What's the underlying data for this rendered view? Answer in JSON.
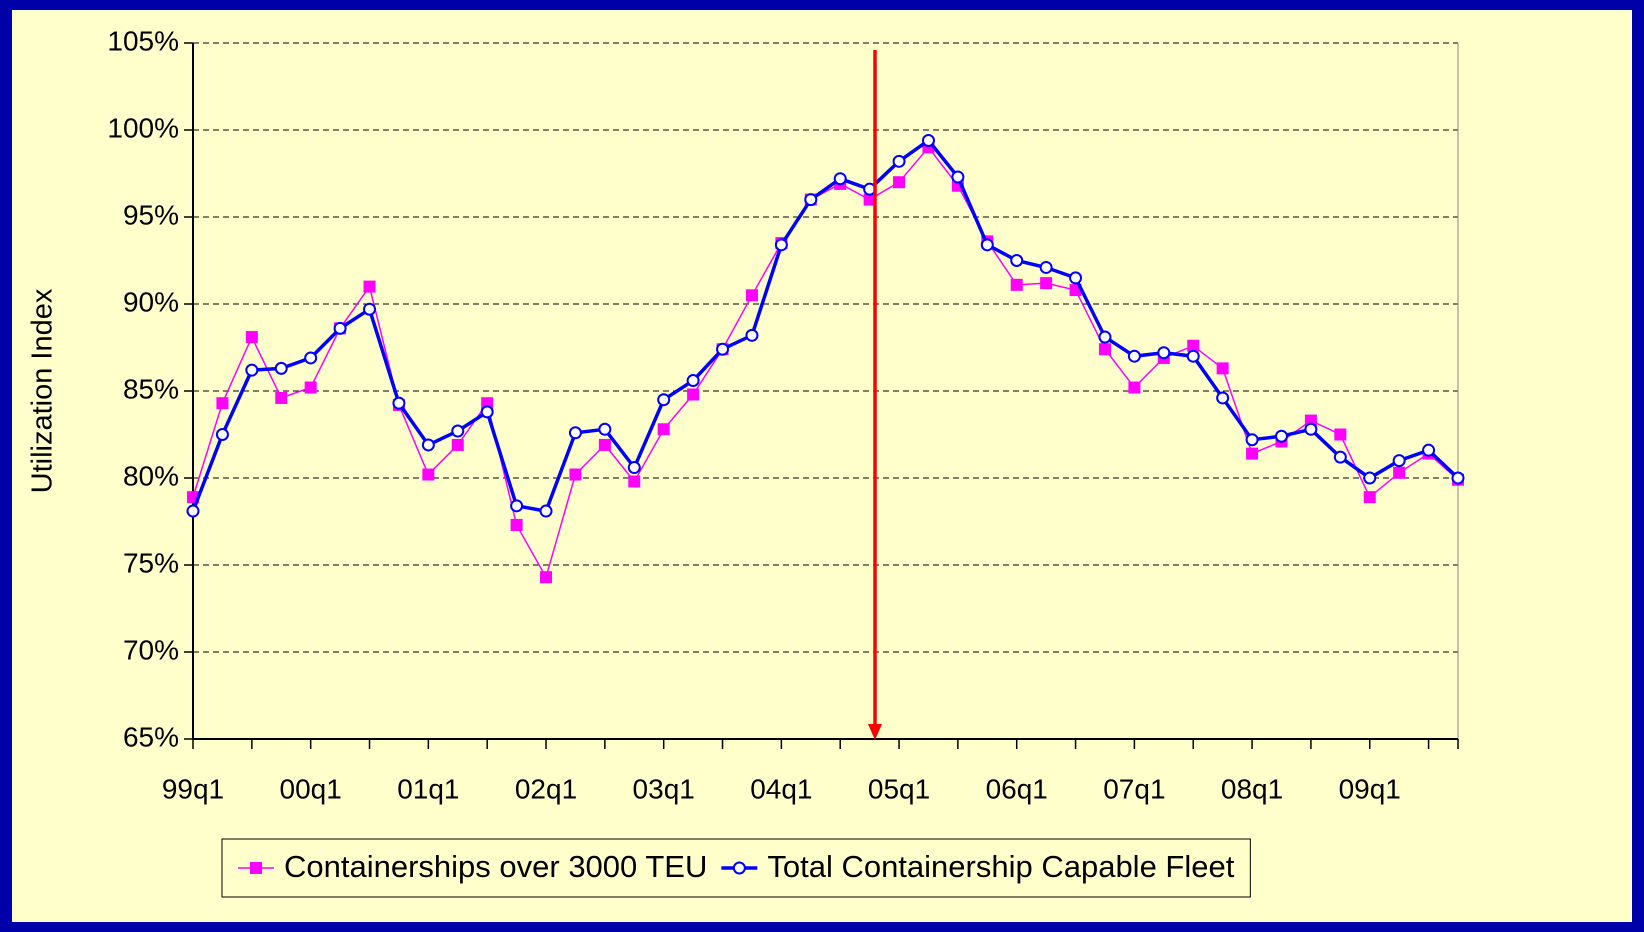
{
  "chart_data": {
    "type": "line",
    "ylabel": "Utilization Index",
    "categories": [
      "99q1",
      null,
      null,
      null,
      "00q1",
      null,
      null,
      null,
      "01q1",
      null,
      null,
      null,
      "02q1",
      null,
      null,
      null,
      "03q1",
      null,
      null,
      null,
      "04q1",
      null,
      null,
      null,
      "05q1",
      null,
      null,
      null,
      "06q1",
      null,
      null,
      null,
      "07q1",
      null,
      null,
      null,
      "08q1",
      null,
      null,
      null,
      "09q1",
      null,
      null,
      null
    ],
    "series": [
      {
        "name": "Containerships over 3000 TEU",
        "color": "#ff00ff",
        "marker": "square",
        "values": [
          78.9,
          84.3,
          88.1,
          84.6,
          85.2,
          88.6,
          91.0,
          84.2,
          80.2,
          81.9,
          84.3,
          77.3,
          74.3,
          80.2,
          81.9,
          79.8,
          82.8,
          84.8,
          87.4,
          90.5,
          93.5,
          96.0,
          96.9,
          96.0,
          97.0,
          99.0,
          96.8,
          93.6,
          91.1,
          91.2,
          90.8,
          87.4,
          85.2,
          86.9,
          87.6,
          86.3,
          81.4,
          82.1,
          83.3,
          82.5,
          78.9,
          80.3,
          81.4,
          79.9
        ]
      },
      {
        "name": "Total Containership Capable Fleet",
        "color": "#0000ff",
        "marker": "circle",
        "values": [
          78.1,
          82.5,
          86.2,
          86.3,
          86.9,
          88.6,
          89.7,
          84.3,
          81.9,
          82.7,
          83.8,
          78.4,
          78.1,
          82.6,
          82.8,
          80.6,
          84.5,
          85.6,
          87.4,
          88.2,
          93.4,
          96.0,
          97.2,
          96.6,
          98.2,
          99.4,
          97.3,
          93.4,
          92.5,
          92.1,
          91.5,
          88.1,
          87.0,
          87.2,
          87.0,
          84.6,
          82.2,
          82.4,
          82.8,
          81.2,
          80.0,
          81.0,
          81.6,
          80.0
        ]
      }
    ],
    "ylim": [
      65,
      105
    ],
    "yticks": [
      {
        "value": 65,
        "label": "65%"
      },
      {
        "value": 70,
        "label": "70%"
      },
      {
        "value": 75,
        "label": "75%"
      },
      {
        "value": 80,
        "label": "80%"
      },
      {
        "value": 85,
        "label": "85%"
      },
      {
        "value": 90,
        "label": "90%"
      },
      {
        "value": 95,
        "label": "95%"
      },
      {
        "value": 100,
        "label": "100%"
      },
      {
        "value": 105,
        "label": "105%"
      }
    ],
    "grid": true,
    "legend": "bottom"
  }
}
